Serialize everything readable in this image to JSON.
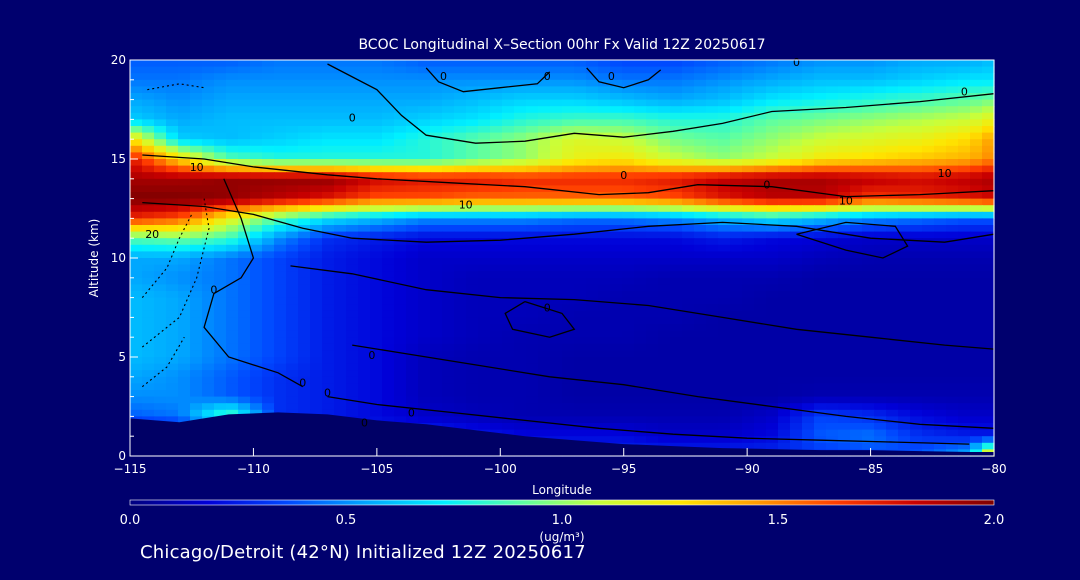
{
  "colors": {
    "background": "#00006e",
    "text": "#ffffff",
    "contour": "#000000",
    "ground": "#000066"
  },
  "footer_text": "Chicago/Detroit (42°N) Initialized 12Z 20250617",
  "chart_data": {
    "type": "heatmap",
    "title": "BCOC Longitudinal X–Section 00hr  Fx Valid 12Z 20250617",
    "xlabel": "Longitude",
    "ylabel": "Altitude (km)",
    "xlim": [
      -115,
      -80
    ],
    "ylim": [
      0,
      20
    ],
    "x_ticks": [
      -115,
      -110,
      -105,
      -100,
      -95,
      -90,
      -85,
      -80
    ],
    "x_tick_labels": [
      "−115",
      "−110",
      "−105",
      "−100",
      "−95",
      "−90",
      "−85",
      "−80"
    ],
    "y_ticks": [
      0,
      5,
      10,
      15,
      20
    ],
    "y_tick_labels": [
      "0",
      "5",
      "10",
      "15",
      "20"
    ],
    "colorbar": {
      "min": 0.0,
      "max": 2.0,
      "ticks": [
        0.0,
        0.5,
        1.0,
        1.5,
        2.0
      ],
      "tick_labels": [
        "0.0",
        "0.5",
        "1.0",
        "1.5",
        "2.0"
      ],
      "unit_label": "(ug/m³)",
      "colormap": [
        "#00007f",
        "#0000d8",
        "#0048ff",
        "#00a6ff",
        "#00f0ff",
        "#5effa1",
        "#c8ff3a",
        "#ffe600",
        "#ff9a00",
        "#ff3c00",
        "#c80000",
        "#7f0000"
      ]
    },
    "ground_profile": [
      [
        -115,
        1.9
      ],
      [
        -113,
        1.7
      ],
      [
        -111,
        2.1
      ],
      [
        -109,
        2.2
      ],
      [
        -107,
        2.1
      ],
      [
        -105,
        1.8
      ],
      [
        -103,
        1.6
      ],
      [
        -101,
        1.3
      ],
      [
        -99,
        1.0
      ],
      [
        -97,
        0.8
      ],
      [
        -95,
        0.6
      ],
      [
        -93,
        0.5
      ],
      [
        -91,
        0.4
      ],
      [
        -89,
        0.35
      ],
      [
        -87,
        0.3
      ],
      [
        -85,
        0.3
      ],
      [
        -83,
        0.25
      ],
      [
        -81,
        0.2
      ],
      [
        -80,
        0.2
      ]
    ],
    "data_source": "synthetic approximation sampled from visual",
    "x": [
      -115,
      -113,
      -111,
      -109,
      -107,
      -105,
      -103,
      -101,
      -99,
      -97,
      -95,
      -93,
      -91,
      -89,
      -87,
      -85,
      -83,
      -81,
      -80
    ],
    "y": [
      0,
      1,
      2,
      3,
      4,
      5,
      6,
      7,
      8,
      9,
      10,
      11,
      12,
      13,
      14,
      15,
      16,
      17,
      18,
      19,
      20
    ],
    "z": [
      [
        0.05,
        0.05,
        0.05,
        0.05,
        0.05,
        0.05,
        0.3,
        0.3,
        0.3,
        0.3,
        0.3,
        0.3,
        0.3,
        0.3,
        0.3,
        0.35,
        0.4,
        0.6,
        1.5
      ],
      [
        0.05,
        0.05,
        0.05,
        0.05,
        0.05,
        0.3,
        0.3,
        0.25,
        0.2,
        0.2,
        0.2,
        0.15,
        0.15,
        0.2,
        0.4,
        0.45,
        0.3,
        0.25,
        0.25
      ],
      [
        0.4,
        0.45,
        0.9,
        0.3,
        0.25,
        0.2,
        0.15,
        0.12,
        0.1,
        0.1,
        0.1,
        0.1,
        0.1,
        0.15,
        0.35,
        0.3,
        0.2,
        0.15,
        0.15
      ],
      [
        0.5,
        0.5,
        0.4,
        0.3,
        0.25,
        0.2,
        0.12,
        0.1,
        0.1,
        0.08,
        0.08,
        0.08,
        0.08,
        0.08,
        0.1,
        0.1,
        0.1,
        0.1,
        0.1
      ],
      [
        0.55,
        0.5,
        0.4,
        0.3,
        0.25,
        0.2,
        0.12,
        0.1,
        0.1,
        0.08,
        0.08,
        0.08,
        0.08,
        0.08,
        0.08,
        0.08,
        0.08,
        0.08,
        0.08
      ],
      [
        0.6,
        0.55,
        0.45,
        0.35,
        0.25,
        0.2,
        0.12,
        0.1,
        0.1,
        0.08,
        0.08,
        0.08,
        0.08,
        0.08,
        0.08,
        0.08,
        0.08,
        0.08,
        0.08
      ],
      [
        0.6,
        0.55,
        0.45,
        0.35,
        0.25,
        0.2,
        0.15,
        0.12,
        0.1,
        0.1,
        0.1,
        0.08,
        0.08,
        0.08,
        0.08,
        0.08,
        0.08,
        0.08,
        0.08
      ],
      [
        0.6,
        0.55,
        0.45,
        0.35,
        0.25,
        0.2,
        0.15,
        0.12,
        0.12,
        0.1,
        0.1,
        0.1,
        0.08,
        0.08,
        0.08,
        0.08,
        0.08,
        0.08,
        0.08
      ],
      [
        0.6,
        0.55,
        0.45,
        0.35,
        0.25,
        0.2,
        0.15,
        0.12,
        0.12,
        0.12,
        0.1,
        0.1,
        0.1,
        0.08,
        0.08,
        0.08,
        0.08,
        0.08,
        0.08
      ],
      [
        0.55,
        0.5,
        0.45,
        0.35,
        0.25,
        0.2,
        0.15,
        0.12,
        0.12,
        0.12,
        0.12,
        0.1,
        0.1,
        0.1,
        0.08,
        0.08,
        0.08,
        0.08,
        0.08
      ],
      [
        0.55,
        0.55,
        0.45,
        0.35,
        0.25,
        0.2,
        0.15,
        0.15,
        0.15,
        0.15,
        0.15,
        0.15,
        0.15,
        0.15,
        0.12,
        0.1,
        0.1,
        0.1,
        0.1
      ],
      [
        0.9,
        0.95,
        0.85,
        0.5,
        0.3,
        0.25,
        0.2,
        0.2,
        0.2,
        0.2,
        0.2,
        0.2,
        0.25,
        0.2,
        0.18,
        0.15,
        0.15,
        0.15,
        0.15
      ],
      [
        1.7,
        1.6,
        1.2,
        0.9,
        0.7,
        0.6,
        0.5,
        0.5,
        0.5,
        0.45,
        0.45,
        0.5,
        0.6,
        0.7,
        0.6,
        0.5,
        0.45,
        0.4,
        0.4
      ],
      [
        2.0,
        2.0,
        1.95,
        1.85,
        1.75,
        1.6,
        1.6,
        1.55,
        1.55,
        1.55,
        1.55,
        1.6,
        1.75,
        1.85,
        1.85,
        1.65,
        1.7,
        1.75,
        1.8
      ],
      [
        1.9,
        1.9,
        1.95,
        1.95,
        1.95,
        1.8,
        1.75,
        1.75,
        1.7,
        1.7,
        1.7,
        1.75,
        1.85,
        1.9,
        1.9,
        1.85,
        1.8,
        1.85,
        1.9
      ],
      [
        1.75,
        1.3,
        0.9,
        0.8,
        0.8,
        0.8,
        0.8,
        0.9,
        1.0,
        1.2,
        1.25,
        1.1,
        1.0,
        1.1,
        1.25,
        1.3,
        1.35,
        1.4,
        1.5
      ],
      [
        1.3,
        0.65,
        0.6,
        0.65,
        0.7,
        0.7,
        0.8,
        0.9,
        1.0,
        1.15,
        1.1,
        0.95,
        0.9,
        1.0,
        1.1,
        1.15,
        1.2,
        1.3,
        1.45
      ],
      [
        0.65,
        0.55,
        0.6,
        0.6,
        0.6,
        0.6,
        0.65,
        0.7,
        0.8,
        0.85,
        0.85,
        0.8,
        0.8,
        0.9,
        0.95,
        1.0,
        1.05,
        1.1,
        1.2
      ],
      [
        0.55,
        0.5,
        0.55,
        0.55,
        0.55,
        0.55,
        0.55,
        0.6,
        0.65,
        0.65,
        0.6,
        0.55,
        0.6,
        0.7,
        0.75,
        0.8,
        0.85,
        0.9,
        0.95
      ],
      [
        0.45,
        0.45,
        0.5,
        0.5,
        0.5,
        0.5,
        0.5,
        0.5,
        0.5,
        0.5,
        0.45,
        0.45,
        0.5,
        0.55,
        0.6,
        0.6,
        0.65,
        0.7,
        0.7
      ],
      [
        0.4,
        0.4,
        0.4,
        0.45,
        0.45,
        0.45,
        0.4,
        0.4,
        0.4,
        0.4,
        0.35,
        0.35,
        0.4,
        0.45,
        0.5,
        0.5,
        0.55,
        0.55,
        0.6
      ]
    ],
    "contour_labels": [
      {
        "lon": -112.3,
        "alt": 14.4,
        "text": "10"
      },
      {
        "lon": -114.1,
        "alt": 11.0,
        "text": "20"
      },
      {
        "lon": -111.6,
        "alt": 8.2,
        "text": "0"
      },
      {
        "lon": -108.0,
        "alt": 3.5,
        "text": "0"
      },
      {
        "lon": -107.0,
        "alt": 3.0,
        "text": "0"
      },
      {
        "lon": -105.5,
        "alt": 1.5,
        "text": "0"
      },
      {
        "lon": -103.6,
        "alt": 2.0,
        "text": "0"
      },
      {
        "lon": -106.0,
        "alt": 16.9,
        "text": "0"
      },
      {
        "lon": -101.4,
        "alt": 12.5,
        "text": "10"
      },
      {
        "lon": -95.0,
        "alt": 14.0,
        "text": "0"
      },
      {
        "lon": -89.2,
        "alt": 13.5,
        "text": "0"
      },
      {
        "lon": -86.0,
        "alt": 12.7,
        "text": "10"
      },
      {
        "lon": -82.0,
        "alt": 14.1,
        "text": "10"
      },
      {
        "lon": -81.2,
        "alt": 18.2,
        "text": "0"
      },
      {
        "lon": -88.0,
        "alt": 19.7,
        "text": "0"
      },
      {
        "lon": -102.3,
        "alt": 19.0,
        "text": "0"
      },
      {
        "lon": -98.1,
        "alt": 19.0,
        "text": "0"
      },
      {
        "lon": -95.5,
        "alt": 19.0,
        "text": "0"
      },
      {
        "lon": -98.1,
        "alt": 7.3,
        "text": "0"
      },
      {
        "lon": -105.2,
        "alt": 4.9,
        "text": "0"
      }
    ]
  }
}
